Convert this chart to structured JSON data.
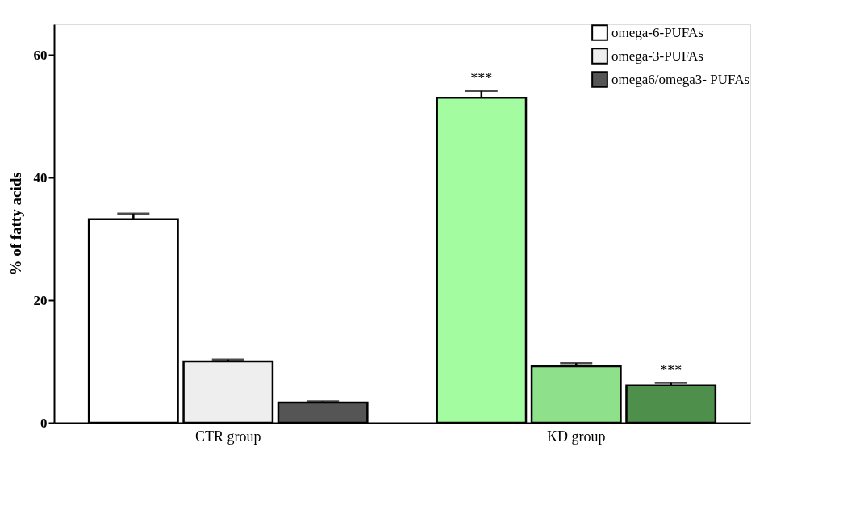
{
  "chart_data": {
    "type": "bar",
    "ylabel": "% of fatty acids",
    "categories": [
      "CTR group",
      "KD group"
    ],
    "series": [
      {
        "name": "omega-6-PUFAs",
        "color": "#ffffff",
        "colors": [
          "#ffffff",
          "#a4fca0"
        ],
        "values": [
          33.2,
          53.0
        ],
        "errors": [
          0.9,
          1.1
        ]
      },
      {
        "name": "omega-3-PUFAs",
        "color": "#eeeeee",
        "colors": [
          "#eeeeee",
          "#8ee08a"
        ],
        "values": [
          10.0,
          9.2
        ],
        "errors": [
          0.3,
          0.5
        ]
      },
      {
        "name": "omega6/omega3- PUFAs",
        "color": "#555555",
        "colors": [
          "#555555",
          "#4f8f4c"
        ],
        "values": [
          3.3,
          6.1
        ],
        "errors": [
          0.2,
          0.4
        ]
      }
    ],
    "ylim": [
      0,
      65
    ],
    "yticks": [
      0,
      20,
      40,
      60
    ],
    "grid": false,
    "legend": "top right",
    "annotations": [
      "***",
      "***"
    ]
  }
}
